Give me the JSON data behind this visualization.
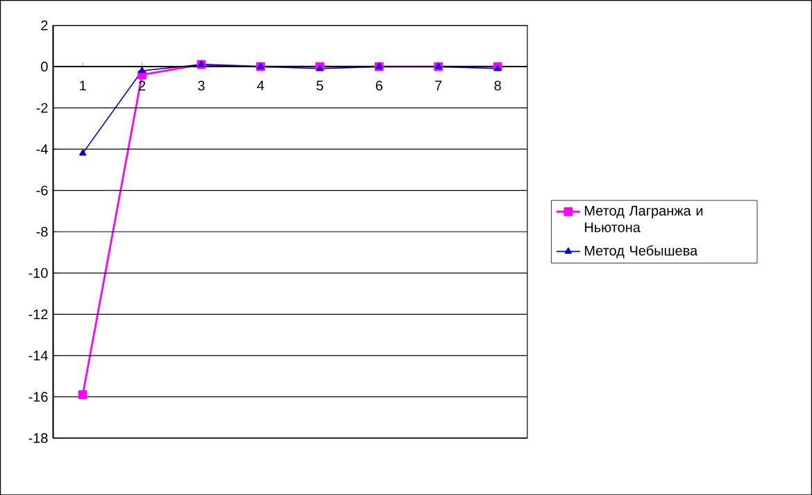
{
  "chart_data": {
    "type": "line",
    "categories": [
      "1",
      "2",
      "3",
      "4",
      "5",
      "6",
      "7",
      "8"
    ],
    "series": [
      {
        "name": "Метод Лагранжа и Ньютона",
        "color": "#ff00ff",
        "marker": "square",
        "values": [
          -15.9,
          -0.4,
          0.1,
          0,
          0,
          0,
          0,
          0
        ]
      },
      {
        "name": "Метод Чебышева",
        "color": "#0000cc",
        "marker": "triangle",
        "values": [
          -4.2,
          -0.2,
          0.1,
          0,
          -0.1,
          0,
          0,
          -0.1
        ]
      }
    ],
    "ylim": [
      -18,
      2
    ],
    "yticks": [
      -18,
      -16,
      -14,
      -12,
      -10,
      -8,
      -6,
      -4,
      -2,
      0,
      2
    ],
    "grid": "y",
    "legend": "right"
  }
}
